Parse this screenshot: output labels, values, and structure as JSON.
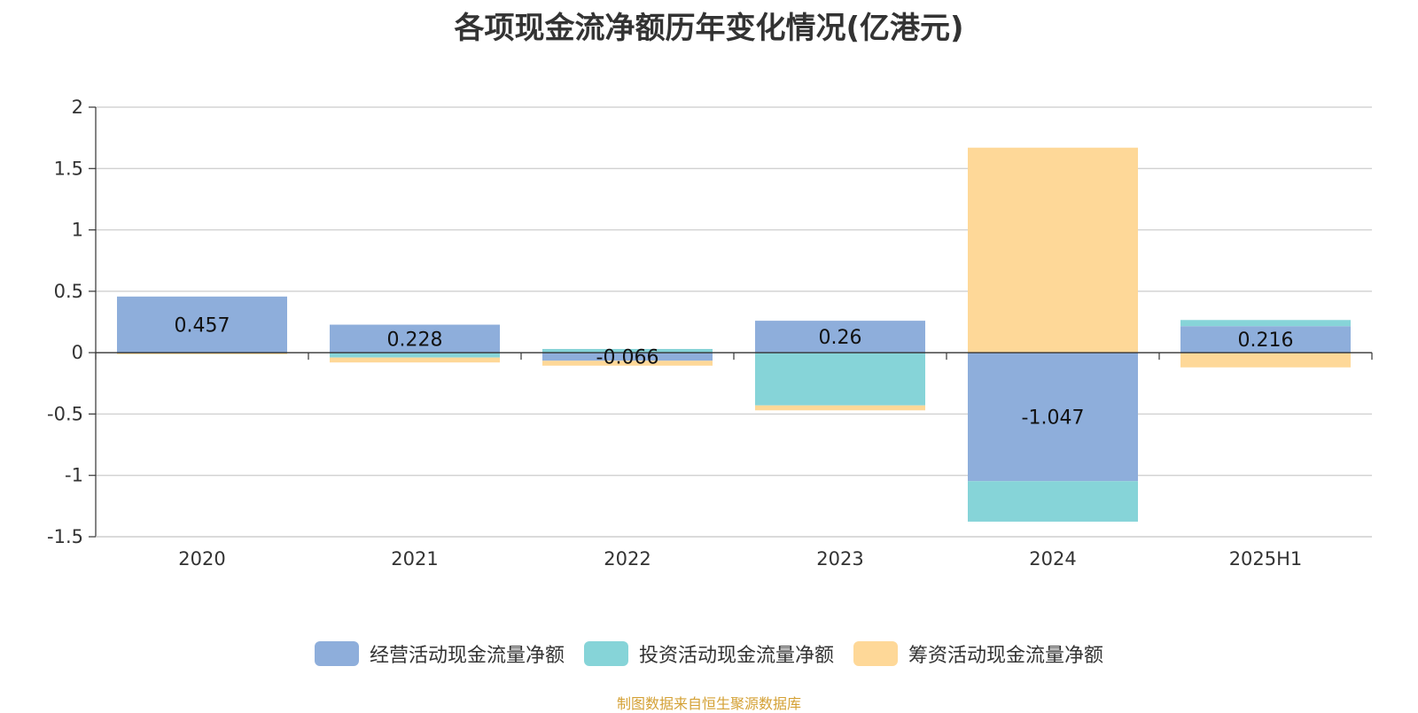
{
  "chart_data": {
    "type": "bar",
    "stacked": true,
    "title": "各项现金流净额历年变化情况(亿港元)",
    "categories": [
      "2020",
      "2021",
      "2022",
      "2023",
      "2024",
      "2025H1"
    ],
    "series": [
      {
        "name": "经营活动现金流量净额",
        "color": "#8eaedb",
        "values": [
          0.457,
          0.228,
          -0.066,
          0.26,
          -1.047,
          0.216
        ]
      },
      {
        "name": "投资活动现金流量净额",
        "color": "#86d4d8",
        "values": [
          -0.005,
          -0.04,
          0.03,
          -0.43,
          -0.33,
          0.05
        ]
      },
      {
        "name": "筹资活动现金流量净额",
        "color": "#fed898",
        "values": [
          -0.008,
          -0.04,
          -0.04,
          -0.04,
          1.67,
          -0.12
        ]
      }
    ],
    "data_labels": [
      "0.457",
      "0.228",
      "-0.066",
      "0.26",
      "-1.047",
      "0.216"
    ],
    "yticks": [
      "2",
      "1.5",
      "1",
      "0.5",
      "0",
      "-0.5",
      "-1",
      "-1.5"
    ],
    "ylim": [
      -1.5,
      2
    ],
    "grid": true,
    "legend_position": "bottom"
  },
  "source_text": "制图数据来自恒生聚源数据库"
}
